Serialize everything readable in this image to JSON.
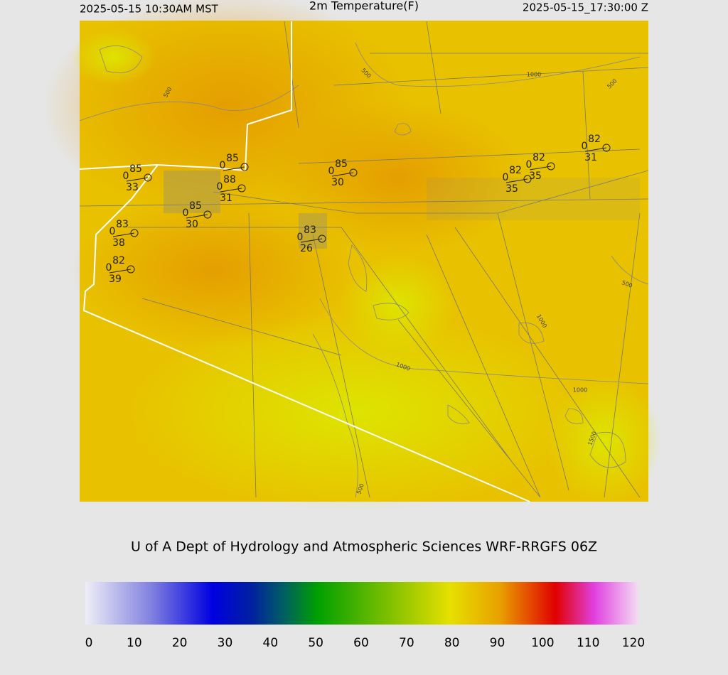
{
  "header": {
    "left": "2025-05-15 10:30AM MST",
    "title": "2m Temperature(F)",
    "right": "2025-05-15_17:30:00 Z"
  },
  "stations": [
    {
      "temp": "85",
      "wind": "0",
      "dew": "33"
    },
    {
      "temp": "85",
      "wind": "0"
    },
    {
      "temp": "88",
      "wind": "0",
      "dew": "31"
    },
    {
      "temp": "85",
      "wind": "0",
      "dew": "30"
    },
    {
      "temp": "85",
      "wind": "0",
      "dew": "30"
    },
    {
      "temp": "83",
      "wind": "0",
      "dew": "26"
    },
    {
      "temp": "83",
      "wind": "0",
      "dew": "38"
    },
    {
      "temp": "82",
      "wind": "0",
      "dew": "39"
    },
    {
      "temp": "82",
      "wind": "0",
      "dew": "35"
    },
    {
      "temp": "82",
      "wind": "0",
      "dew": "35"
    },
    {
      "temp": "82",
      "wind": "0",
      "dew": "31"
    }
  ],
  "contour_labels": [
    "500",
    "500",
    "1000",
    "500",
    "500",
    "1000",
    "1000",
    "1000",
    "1500",
    "500"
  ],
  "footer": "U of A Dept of Hydrology and Atmospheric Sciences WRF-RRGFS 06Z",
  "colorbar": {
    "range": [
      0,
      120
    ],
    "ticks": [
      0,
      10,
      20,
      30,
      40,
      50,
      60,
      70,
      80,
      90,
      100,
      110,
      120
    ]
  }
}
